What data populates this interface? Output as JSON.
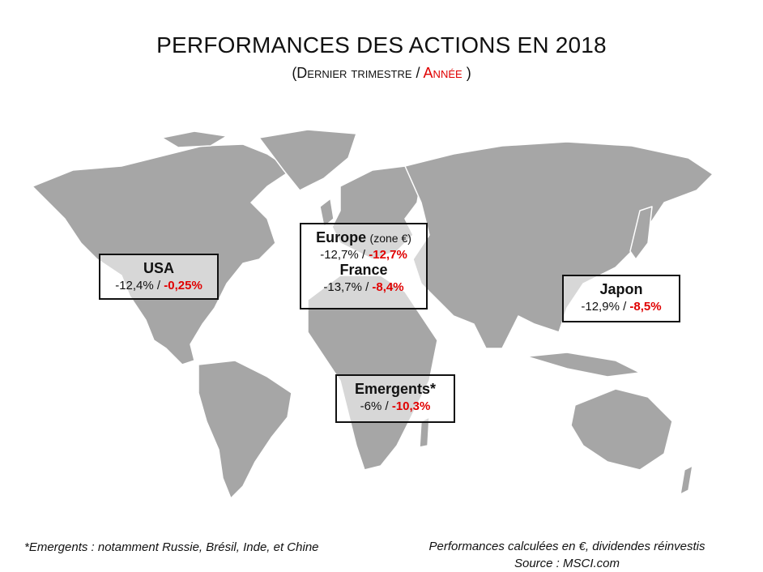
{
  "title": "PERFORMANCES DES ACTIONS EN 2018",
  "subtitle": {
    "open": "(Dernier trimestre / ",
    "year": "Année",
    "close": ")"
  },
  "regions": [
    {
      "name": "USA",
      "note": "",
      "quarter": "-12,4%",
      "sep": " / ",
      "year": "-0,25%"
    },
    {
      "name": "Europe",
      "note": "(zone €)",
      "quarter": "-12,7%",
      "sep": " / ",
      "year": "-12,7%"
    },
    {
      "name": "France",
      "note": "",
      "quarter": "-13,7%",
      "sep": " / ",
      "year": "-8,4%"
    },
    {
      "name": "Japon",
      "note": "",
      "quarter": "-12,9%",
      "sep": " / ",
      "year": "-8,5%"
    },
    {
      "name": "Emergents*",
      "note": "",
      "quarter": "-6%",
      "sep": " / ",
      "year": "-10,3%"
    }
  ],
  "footnote": "*Emergents : notamment Russie, Brésil, Inde, et Chine",
  "source_lines": [
    "Performances calculées en €, dividendes réinvestis",
    "Source : MSCI.com"
  ],
  "colors": {
    "land": "#a6a6a6",
    "land_outline": "#ffffff",
    "year_value": "#e00000",
    "box_border": "#111111"
  }
}
